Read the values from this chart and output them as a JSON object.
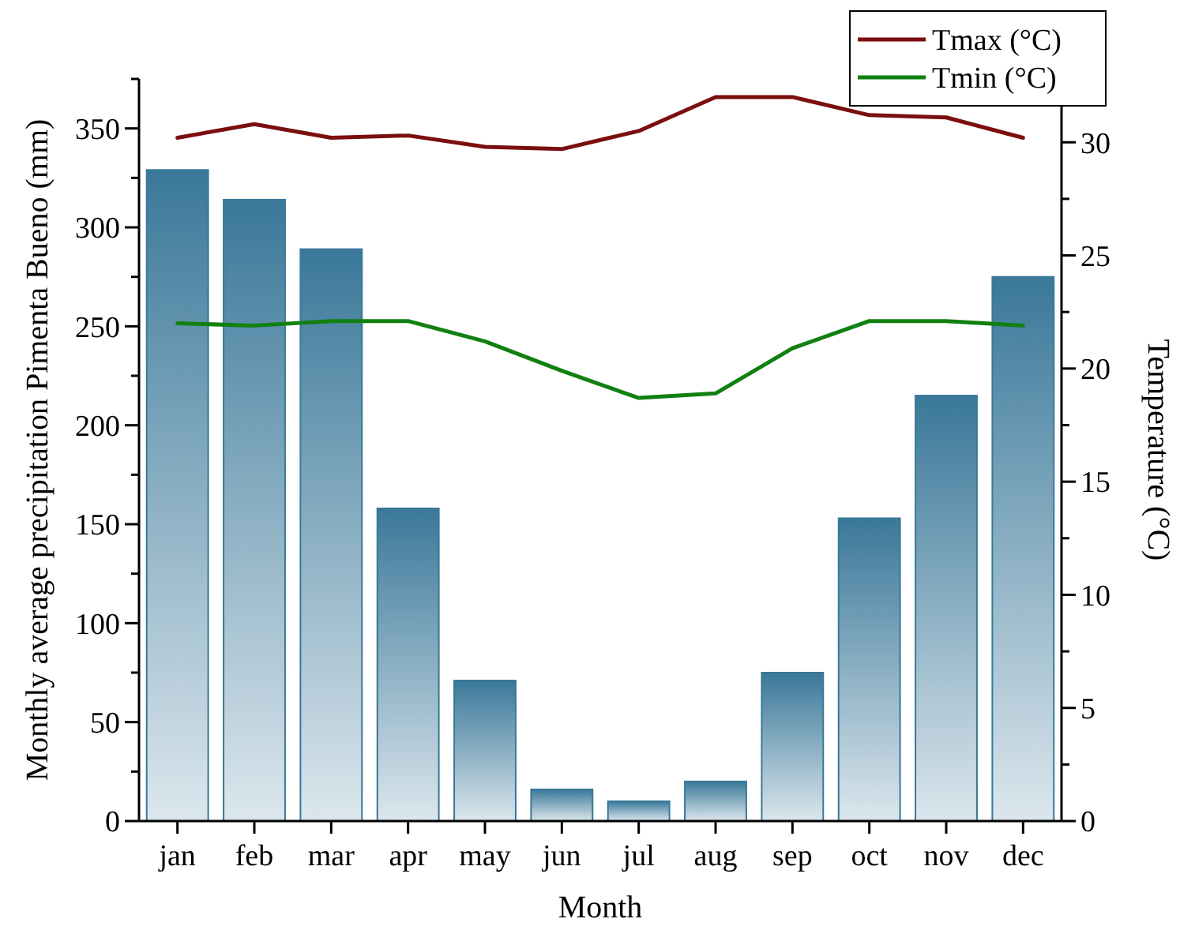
{
  "chart_data": {
    "type": "bar",
    "xlabel": "Month",
    "ylabel": "Monthly average precipitation Pimenta Bueno (mm)",
    "y2label": "Temperature (°C)",
    "categories": [
      "jan",
      "feb",
      "mar",
      "apr",
      "may",
      "jun",
      "jul",
      "aug",
      "sep",
      "oct",
      "nov",
      "dec"
    ],
    "series": [
      {
        "color": "#3a7899",
        "values": [
          329,
          314,
          289,
          158,
          71,
          16,
          10,
          20,
          75,
          153,
          215,
          275
        ]
      },
      {
        "type": "line",
        "axis": "y2",
        "name": "Tmax (°C)",
        "color": "#7b0f0f",
        "values": [
          30.2,
          30.8,
          30.2,
          30.3,
          29.8,
          29.7,
          30.5,
          32.0,
          32.0,
          31.2,
          31.1,
          30.2
        ]
      },
      {
        "type": "line",
        "axis": "y2",
        "name": "Tmin (°C)",
        "color": "#118011",
        "values": [
          22.0,
          21.9,
          22.1,
          22.1,
          21.2,
          19.9,
          18.7,
          18.9,
          20.9,
          22.1,
          22.1,
          21.9
        ]
      }
    ],
    "ylim": [
      0,
      375
    ],
    "yticks": [
      0,
      {
        "value": 25,
        "label": null
      },
      50,
      {
        "value": 75,
        "label": null
      },
      100,
      {
        "value": 125,
        "label": null
      },
      150,
      {
        "value": 175,
        "label": null
      },
      200,
      {
        "value": 225,
        "label": null
      },
      250,
      {
        "value": 275,
        "label": null
      },
      300,
      {
        "value": 325,
        "label": null
      },
      350,
      {
        "value": 375,
        "label": null
      }
    ],
    "y2lim": [
      0,
      32.8
    ],
    "y2ticks": [
      0,
      {
        "value": 2.5,
        "label": null
      },
      5,
      {
        "value": 7.5,
        "label": null
      },
      10,
      {
        "value": 12.5,
        "label": null
      },
      15,
      {
        "value": 17.5,
        "label": null
      },
      20,
      {
        "value": 22.5,
        "label": null
      },
      25,
      {
        "value": 27.5,
        "label": null
      },
      30,
      {
        "value": 32.5,
        "label": null
      }
    ],
    "grid": false,
    "legend": "top right"
  }
}
